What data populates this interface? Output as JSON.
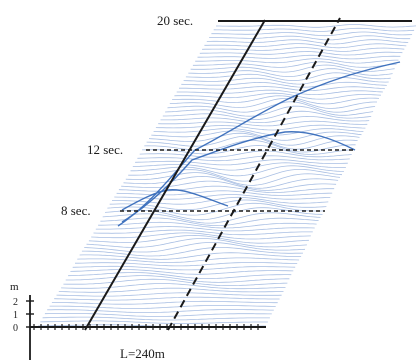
{
  "diagram": {
    "time_labels": [
      {
        "id": "t20",
        "text": "20 sec."
      },
      {
        "id": "t12",
        "text": "12 sec."
      },
      {
        "id": "t8",
        "text": "8 sec."
      }
    ],
    "scale": {
      "unit": "m",
      "ticks": [
        "2",
        "1",
        "0"
      ]
    },
    "length_label": "L=240m",
    "colors": {
      "waterfall_lines": "#a9bfe3",
      "wave_trace": "#2f66b8",
      "axes": "#1a1a1a"
    }
  }
}
